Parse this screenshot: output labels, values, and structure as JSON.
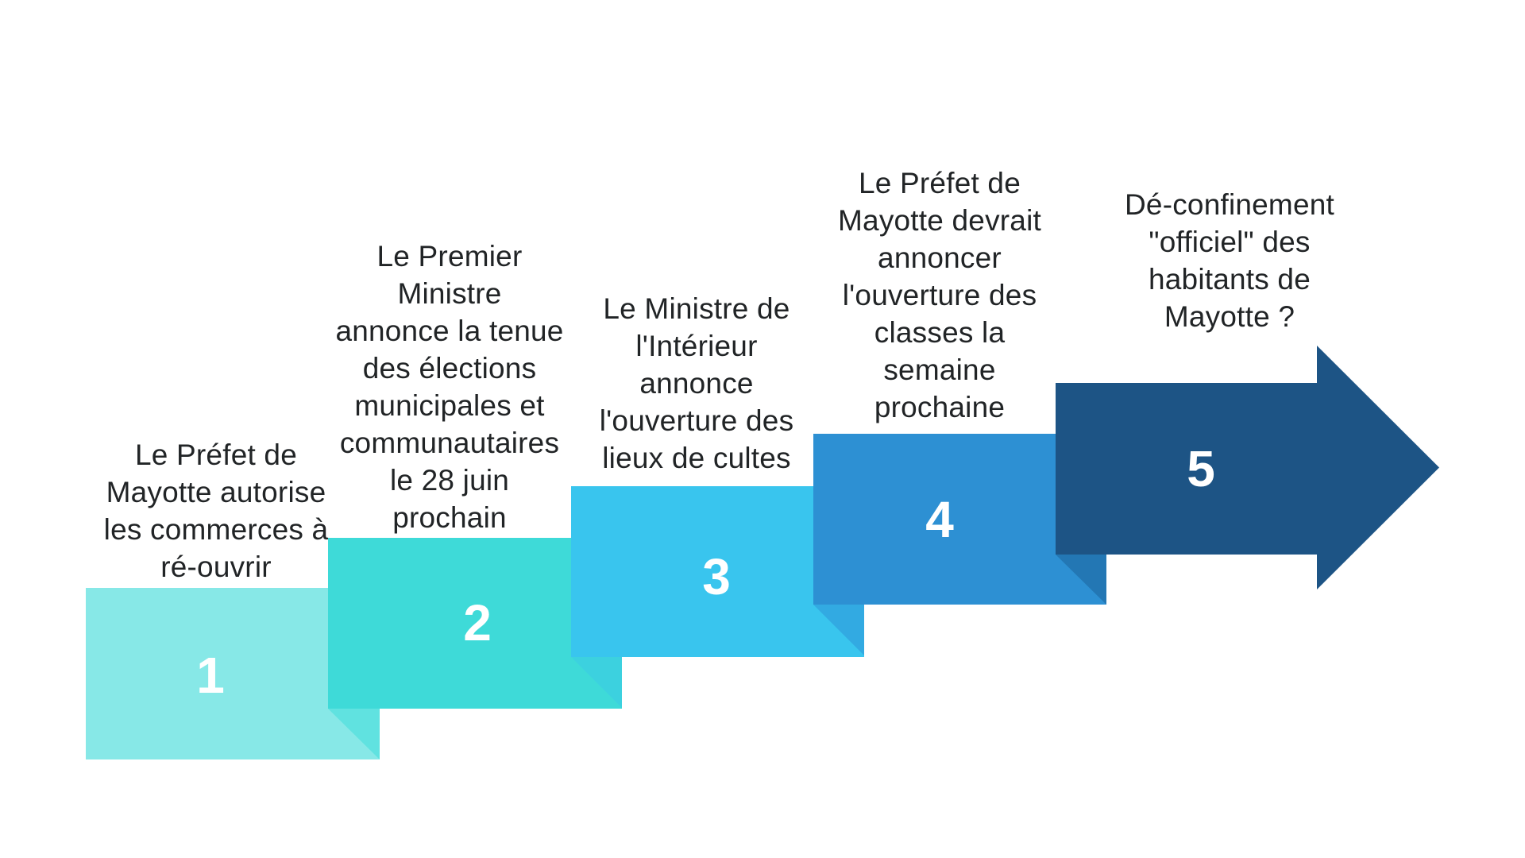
{
  "diagram": {
    "type": "staircase-process-arrow",
    "background_color": "#ffffff",
    "text_color": "#212426",
    "number_color": "#ffffff"
  },
  "steps": [
    {
      "number": "1",
      "caption": "Le Préfet de\nMayotte autorise\nles commerces à\nré-ouvrir",
      "color": "#87E8E7"
    },
    {
      "number": "2",
      "caption": "Le Premier\nMinistre\nannonce la tenue\ndes élections\nmunicipales et\ncommunautaires\nle 28 juin\nprochain",
      "color": "#3EDAD8",
      "fold_color": "#60E2E0"
    },
    {
      "number": "3",
      "caption": "Le Ministre de\nl'Intérieur\nannonce\nl'ouverture des\nlieux de cultes",
      "color": "#39C5EE",
      "fold_color": "#3CD1DF"
    },
    {
      "number": "4",
      "caption": "Le Préfet de\nMayotte devrait\nannoncer\nl'ouverture des\nclasses la\nsemaine\nprochaine",
      "color": "#2D90D3",
      "fold_color": "#32AAE2"
    },
    {
      "number": "5",
      "caption": "Dé-confinement\n\"officiel\" des\nhabitants de\nMayotte ?",
      "color": "#1D5485",
      "fold_color": "#2377B4",
      "shape": "arrow"
    }
  ]
}
